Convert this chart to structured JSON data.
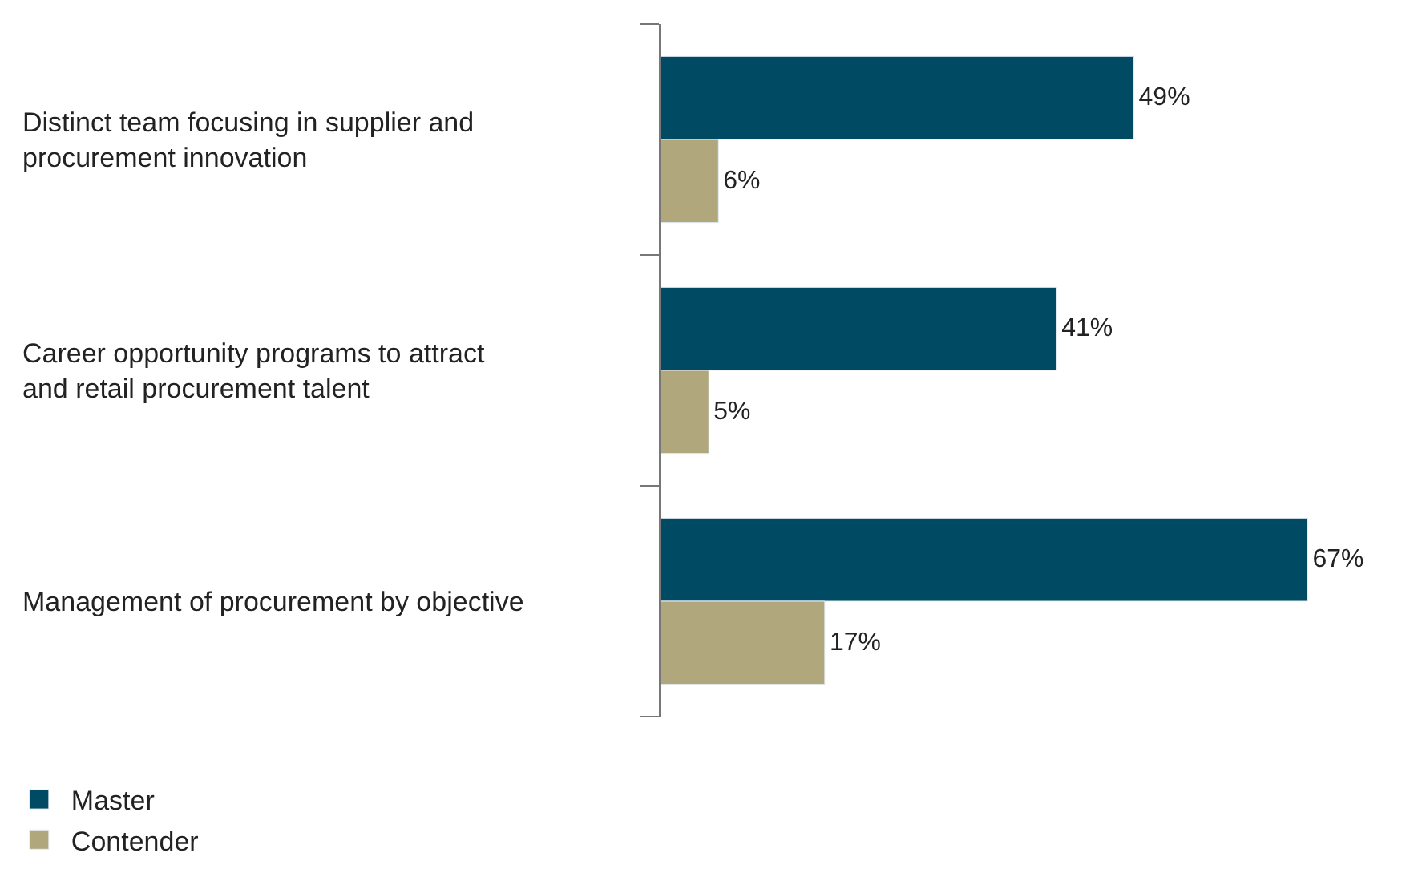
{
  "chart_data": {
    "type": "bar",
    "orientation": "horizontal",
    "categories": [
      "Distinct team focusing in supplier and\nprocurement innovation",
      "Career opportunity programs to attract\nand retail procurement talent",
      "Management of procurement by objective"
    ],
    "series": [
      {
        "name": "Master",
        "color": "#004a63",
        "values": [
          49,
          41,
          67
        ],
        "value_labels": [
          "49%",
          "41%",
          "67%"
        ]
      },
      {
        "name": "Contender",
        "color": "#b0a77c",
        "values": [
          6,
          5,
          17
        ],
        "value_labels": [
          "6%",
          "5%",
          "17%"
        ]
      }
    ],
    "tick_labels": "y",
    "legend": "bottom left"
  }
}
